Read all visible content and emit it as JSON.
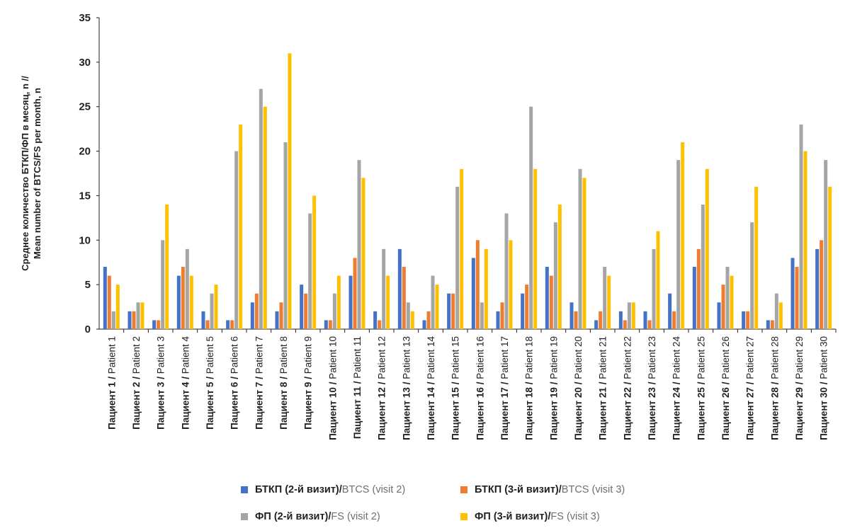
{
  "chart_data": {
    "type": "bar",
    "title": "",
    "ylabel_line1": "Среднее количество БТКП/ФП в месяц, n //",
    "ylabel_line2": "Mean number of BTCS/FS per month, n",
    "ylim": [
      0,
      35
    ],
    "yticks": [
      0,
      5,
      10,
      15,
      20,
      25,
      30,
      35
    ],
    "grid": false,
    "legend_position": "bottom",
    "categories_ru": [
      "Пациент 1",
      "Пациент 2",
      "Пациент 3",
      "Пациент 4",
      "Пациент 5",
      "Пациент 6",
      "Пациент 7",
      "Пациент 8",
      "Пациент 9",
      "Пациент 10",
      "Пациент 11",
      "Пациент 12",
      "Пациент 13",
      "Пациент 14",
      "Пациент 15",
      "Пациент 16",
      "Пациент 17",
      "Пациент 18",
      "Пациент 19",
      "Пациент 20",
      "Пациент 21",
      "Пациент 22",
      "Пациент 23",
      "Пациент 24",
      "Пациент 25",
      "Пациент 26",
      "Пациент 27",
      "Пациент 28",
      "Пациент 29",
      "Пациент 30"
    ],
    "categories_en": [
      "Patient 1",
      "Patient 2",
      "Patient 3",
      "Patient 4",
      "Patient 5",
      "Patient 6",
      "Patient 7",
      "Patient 8",
      "Patient 9",
      "Patient 10",
      "Patient 11",
      "Patient 12",
      "Patient 13",
      "Patient 14",
      "Patient 15",
      "Patient 16",
      "Patient 17",
      "Patient 18",
      "Patient 19",
      "Patient 20",
      "Patient 21",
      "Patient 22",
      "Patient 23",
      "Patient 24",
      "Patient 25",
      "Patient 26",
      "Patient 27",
      "Patient 28",
      "Patient 29",
      "Patient 30"
    ],
    "series": [
      {
        "name_ru": "БТКП (2-й визит)",
        "name_en": "BTCS (visit 2)",
        "color": "#4472c4",
        "values": [
          7,
          2,
          1,
          6,
          2,
          1,
          3,
          2,
          5,
          1,
          6,
          2,
          9,
          1,
          4,
          8,
          2,
          4,
          7,
          3,
          1,
          2,
          2,
          4,
          7,
          3,
          2,
          1,
          8,
          9
        ]
      },
      {
        "name_ru": "БТКП (3-й визит)",
        "name_en": "BTCS (visit 3)",
        "color": "#ed7d31",
        "values": [
          6,
          2,
          1,
          7,
          1,
          1,
          4,
          3,
          4,
          1,
          8,
          1,
          7,
          2,
          4,
          10,
          3,
          5,
          6,
          2,
          2,
          1,
          1,
          2,
          9,
          5,
          2,
          1,
          7,
          10
        ]
      },
      {
        "name_ru": "ФП (2-й визит)",
        "name_en": "FS (visit 2)",
        "color": "#a5a5a5",
        "values": [
          2,
          3,
          10,
          9,
          4,
          20,
          27,
          21,
          13,
          4,
          19,
          9,
          3,
          6,
          16,
          3,
          13,
          25,
          12,
          18,
          7,
          3,
          9,
          19,
          14,
          7,
          12,
          4,
          23,
          19
        ]
      },
      {
        "name_ru": "ФП (3-й визит)",
        "name_en": "FS (visit 3)",
        "color": "#ffc000",
        "values": [
          5,
          3,
          14,
          6,
          5,
          23,
          25,
          31,
          15,
          6,
          17,
          6,
          2,
          5,
          18,
          9,
          10,
          18,
          14,
          17,
          6,
          3,
          11,
          21,
          18,
          6,
          16,
          3,
          20,
          16
        ]
      }
    ],
    "separator": " / "
  }
}
